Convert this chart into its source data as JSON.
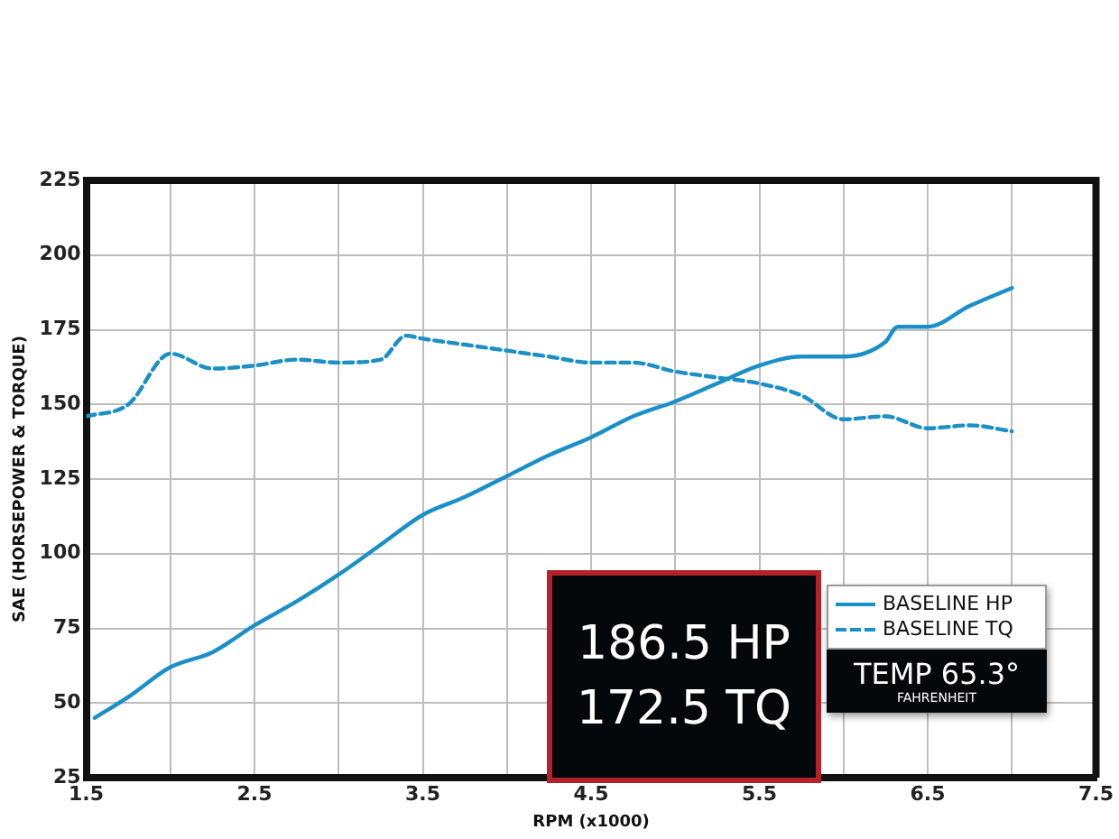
{
  "chart_data": {
    "type": "line",
    "xlabel": "RPM (x1000)",
    "ylabel": "SAE (HORSEPOWER & TORQUE)",
    "xlim": [
      1.5,
      7.5
    ],
    "xticks": [
      1.5,
      {
        "value": 2,
        "label": null
      },
      2.5,
      {
        "value": 3,
        "label": null
      },
      3.5,
      {
        "value": 4,
        "label": null
      },
      4.5,
      {
        "value": 5,
        "label": null
      },
      5.5,
      {
        "value": 6,
        "label": null
      },
      6.5,
      {
        "value": 7,
        "label": null
      },
      7.5
    ],
    "ylim": [
      25,
      225
    ],
    "yticks": [
      25,
      50,
      75,
      100,
      125,
      150,
      175,
      200,
      225
    ],
    "grid": true,
    "legend": "bottom right",
    "marker": "none",
    "series": [
      {
        "name": "BASELINE HP",
        "color": "#1a8fc8",
        "line_style": "solid",
        "x": [
          1.55,
          1.75,
          2.0,
          2.25,
          2.5,
          2.75,
          3.0,
          3.25,
          3.5,
          3.75,
          4.0,
          4.25,
          4.5,
          4.75,
          5.0,
          5.25,
          5.5,
          5.75,
          6.0,
          6.25,
          6.32,
          6.5,
          6.75,
          7.0
        ],
        "values": [
          45,
          52,
          62,
          67,
          76,
          84,
          93,
          103,
          113,
          119,
          126,
          133,
          139,
          146,
          151,
          157,
          163,
          166,
          166,
          171,
          176,
          176,
          183,
          189
        ]
      },
      {
        "name": "BASELINE TQ",
        "color": "#1a8fc8",
        "line_style": "dashed",
        "x": [
          1.5,
          1.75,
          2.0,
          2.25,
          2.5,
          2.75,
          3.0,
          3.25,
          3.4,
          3.5,
          3.75,
          4.0,
          4.25,
          4.5,
          4.75,
          5.0,
          5.25,
          5.5,
          5.75,
          6.0,
          6.25,
          6.5,
          6.75,
          7.0
        ],
        "values": [
          146,
          150,
          167,
          162,
          163,
          165,
          164,
          165,
          173,
          172,
          170,
          168,
          166,
          164,
          164,
          161,
          159,
          157,
          153,
          145,
          146,
          142,
          143,
          141
        ]
      }
    ],
    "annotations": [
      "186.5 HP",
      "172.5 TQ",
      "TEMP 65.3°",
      "FAHRENHEIT"
    ]
  }
}
